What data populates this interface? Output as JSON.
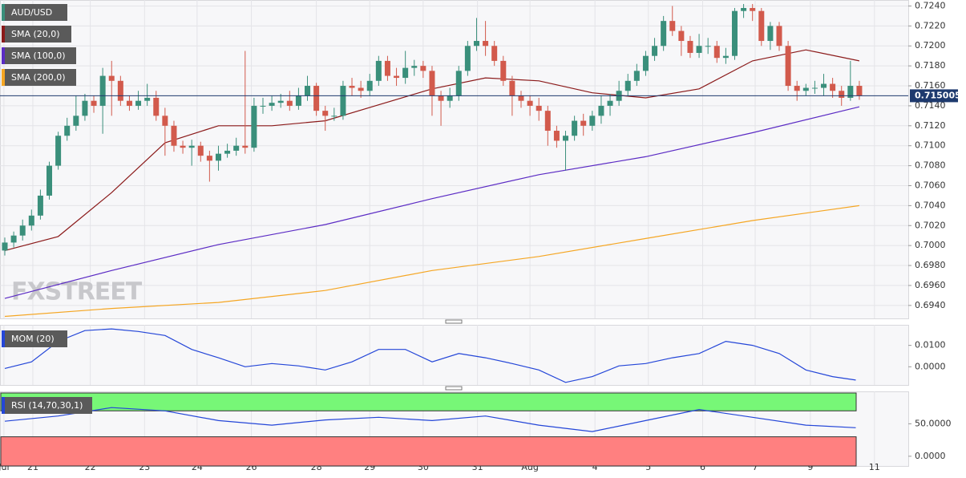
{
  "chart_data": [
    {
      "type": "candlestick",
      "title": "AUD/USD",
      "watermark": "FXSTREET",
      "up_color": "#3a8f7b",
      "down_color": "#d25a4c",
      "grid": true,
      "xlim": [
        -0.54,
        101.5
      ],
      "xticks": [
        {
          "value": -0.1,
          "label": "Jul"
        },
        {
          "value": 3.15,
          "label": "21"
        },
        {
          "value": 9.6,
          "label": "22"
        },
        {
          "value": 15.7,
          "label": "23"
        },
        {
          "value": 21.6,
          "label": "24"
        },
        {
          "value": 27.7,
          "label": "26"
        },
        {
          "value": 35,
          "label": "28"
        },
        {
          "value": 41,
          "label": "29"
        },
        {
          "value": 47,
          "label": "30"
        },
        {
          "value": 53.1,
          "label": "31"
        },
        {
          "value": 59,
          "label": "Aug"
        },
        {
          "value": 66.3,
          "label": "4"
        },
        {
          "value": 72.3,
          "label": "5"
        },
        {
          "value": 78.4,
          "label": "6"
        },
        {
          "value": 84.3,
          "label": "7"
        },
        {
          "value": 90.5,
          "label": "9"
        },
        {
          "value": 97.7,
          "label": "11"
        }
      ],
      "ylim": [
        0.6927,
        0.7246
      ],
      "yticks": [
        {
          "value": 0.724,
          "label": "0.7240"
        },
        {
          "value": 0.722,
          "label": "0.7220"
        },
        {
          "value": 0.72,
          "label": "0.7200"
        },
        {
          "value": 0.718,
          "label": "0.7180"
        },
        {
          "value": 0.716,
          "label": "0.7160"
        },
        {
          "value": 0.714,
          "label": "0.7140"
        },
        {
          "value": 0.712,
          "label": "0.7120"
        },
        {
          "value": 0.71,
          "label": "0.7100"
        },
        {
          "value": 0.708,
          "label": "0.7080"
        },
        {
          "value": 0.706,
          "label": "0.7060"
        },
        {
          "value": 0.704,
          "label": "0.7040"
        },
        {
          "value": 0.702,
          "label": "0.7020"
        },
        {
          "value": 0.7,
          "label": "0.7000"
        },
        {
          "value": 0.698,
          "label": "0.6980"
        },
        {
          "value": 0.696,
          "label": "0.6960"
        },
        {
          "value": 0.694,
          "label": "0.6940"
        }
      ],
      "last": 0.715005,
      "last_color": "#1e3a6e",
      "candles": [
        [
          0.6995,
          0.7008,
          0.699,
          0.7003
        ],
        [
          0.7003,
          0.7014,
          0.6998,
          0.701
        ],
        [
          0.701,
          0.7026,
          0.7005,
          0.702
        ],
        [
          0.702,
          0.7036,
          0.7015,
          0.703
        ],
        [
          0.703,
          0.7056,
          0.7026,
          0.705
        ],
        [
          0.705,
          0.7084,
          0.7046,
          0.708
        ],
        [
          0.708,
          0.7114,
          0.7076,
          0.711
        ],
        [
          0.711,
          0.7128,
          0.7105,
          0.712
        ],
        [
          0.712,
          0.715,
          0.7115,
          0.713
        ],
        [
          0.713,
          0.7152,
          0.7125,
          0.7145
        ],
        [
          0.7145,
          0.715,
          0.7133,
          0.714
        ],
        [
          0.714,
          0.7178,
          0.7112,
          0.717
        ],
        [
          0.717,
          0.7185,
          0.713,
          0.7165
        ],
        [
          0.7165,
          0.717,
          0.714,
          0.7145
        ],
        [
          0.7145,
          0.715,
          0.7135,
          0.714
        ],
        [
          0.714,
          0.7155,
          0.7136,
          0.7145
        ],
        [
          0.7145,
          0.7162,
          0.714,
          0.7148
        ],
        [
          0.7148,
          0.7155,
          0.7125,
          0.713
        ],
        [
          0.713,
          0.7138,
          0.709,
          0.712
        ],
        [
          0.712,
          0.7125,
          0.7094,
          0.71
        ],
        [
          0.71,
          0.7105,
          0.7092,
          0.7098
        ],
        [
          0.7098,
          0.7106,
          0.708,
          0.71
        ],
        [
          0.71,
          0.7104,
          0.7084,
          0.709
        ],
        [
          0.709,
          0.7095,
          0.7064,
          0.7085
        ],
        [
          0.7085,
          0.71,
          0.7075,
          0.7092
        ],
        [
          0.7092,
          0.7102,
          0.7088,
          0.7095
        ],
        [
          0.7095,
          0.7108,
          0.709,
          0.71
        ],
        [
          0.71,
          0.7195,
          0.7092,
          0.7098
        ],
        [
          0.7098,
          0.7148,
          0.7094,
          0.714
        ],
        [
          0.714,
          0.7148,
          0.7132,
          0.714
        ],
        [
          0.714,
          0.715,
          0.7135,
          0.7143
        ],
        [
          0.7143,
          0.7152,
          0.7138,
          0.7145
        ],
        [
          0.7145,
          0.7155,
          0.7135,
          0.714
        ],
        [
          0.714,
          0.7158,
          0.7136,
          0.715
        ],
        [
          0.715,
          0.717,
          0.7145,
          0.716
        ],
        [
          0.716,
          0.7163,
          0.713,
          0.7135
        ],
        [
          0.7135,
          0.714,
          0.7115,
          0.713
        ],
        [
          0.713,
          0.7138,
          0.7125,
          0.713
        ],
        [
          0.713,
          0.7165,
          0.7126,
          0.716
        ],
        [
          0.716,
          0.7168,
          0.715,
          0.7158
        ],
        [
          0.7158,
          0.7165,
          0.7148,
          0.7155
        ],
        [
          0.7155,
          0.7172,
          0.715,
          0.7165
        ],
        [
          0.7165,
          0.719,
          0.716,
          0.7185
        ],
        [
          0.7185,
          0.719,
          0.7165,
          0.717
        ],
        [
          0.717,
          0.7178,
          0.716,
          0.7168
        ],
        [
          0.7168,
          0.7195,
          0.7162,
          0.7178
        ],
        [
          0.7178,
          0.7186,
          0.717,
          0.718
        ],
        [
          0.718,
          0.7185,
          0.7168,
          0.7175
        ],
        [
          0.7175,
          0.718,
          0.713,
          0.715
        ],
        [
          0.715,
          0.7155,
          0.712,
          0.7145
        ],
        [
          0.7145,
          0.7158,
          0.7138,
          0.715
        ],
        [
          0.715,
          0.718,
          0.7145,
          0.7175
        ],
        [
          0.7175,
          0.7205,
          0.717,
          0.72
        ],
        [
          0.72,
          0.7228,
          0.7195,
          0.7205
        ],
        [
          0.7205,
          0.7225,
          0.719,
          0.72
        ],
        [
          0.72,
          0.7205,
          0.718,
          0.7185
        ],
        [
          0.7185,
          0.719,
          0.716,
          0.7165
        ],
        [
          0.7165,
          0.717,
          0.713,
          0.715
        ],
        [
          0.715,
          0.7155,
          0.7138,
          0.7145
        ],
        [
          0.7145,
          0.715,
          0.713,
          0.714
        ],
        [
          0.714,
          0.7148,
          0.7125,
          0.7135
        ],
        [
          0.7135,
          0.714,
          0.71,
          0.7115
        ],
        [
          0.7115,
          0.712,
          0.7098,
          0.7105
        ],
        [
          0.7105,
          0.7115,
          0.7075,
          0.711
        ],
        [
          0.711,
          0.713,
          0.7105,
          0.7125
        ],
        [
          0.7125,
          0.7132,
          0.711,
          0.712
        ],
        [
          0.712,
          0.7135,
          0.7115,
          0.713
        ],
        [
          0.713,
          0.715,
          0.7122,
          0.714
        ],
        [
          0.714,
          0.7152,
          0.713,
          0.7145
        ],
        [
          0.7145,
          0.7165,
          0.714,
          0.7155
        ],
        [
          0.7155,
          0.7172,
          0.715,
          0.7165
        ],
        [
          0.7165,
          0.7182,
          0.716,
          0.7175
        ],
        [
          0.7175,
          0.7195,
          0.717,
          0.719
        ],
        [
          0.719,
          0.7208,
          0.7185,
          0.72
        ],
        [
          0.72,
          0.723,
          0.7195,
          0.7225
        ],
        [
          0.7225,
          0.724,
          0.721,
          0.7215
        ],
        [
          0.7215,
          0.722,
          0.719,
          0.7205
        ],
        [
          0.7205,
          0.721,
          0.7188,
          0.7193
        ],
        [
          0.7193,
          0.7212,
          0.7188,
          0.72
        ],
        [
          0.72,
          0.7208,
          0.7192,
          0.72
        ],
        [
          0.72,
          0.7205,
          0.7183,
          0.7188
        ],
        [
          0.7188,
          0.7198,
          0.7182,
          0.719
        ],
        [
          0.719,
          0.7238,
          0.7186,
          0.7235
        ],
        [
          0.7235,
          0.7242,
          0.7228,
          0.7238
        ],
        [
          0.7238,
          0.7242,
          0.7225,
          0.7235
        ],
        [
          0.7235,
          0.7238,
          0.72,
          0.7205
        ],
        [
          0.7205,
          0.7224,
          0.7196,
          0.722
        ],
        [
          0.722,
          0.7224,
          0.7195,
          0.72
        ],
        [
          0.72,
          0.7205,
          0.7155,
          0.716
        ],
        [
          0.716,
          0.7165,
          0.7145,
          0.7155
        ],
        [
          0.7155,
          0.7162,
          0.715,
          0.7158
        ],
        [
          0.7158,
          0.7165,
          0.7152,
          0.7158
        ],
        [
          0.7158,
          0.7172,
          0.715,
          0.7162
        ],
        [
          0.7162,
          0.7168,
          0.7148,
          0.7155
        ],
        [
          0.7155,
          0.716,
          0.714,
          0.7148
        ],
        [
          0.7148,
          0.7185,
          0.7145,
          0.716
        ],
        [
          0.716,
          0.7165,
          0.7146,
          0.715
        ]
      ],
      "series": [
        {
          "name": "SMA (20,0)",
          "color": "#8b1a1a",
          "x": [
            0,
            6,
            12,
            18,
            24,
            30,
            36,
            42,
            48,
            54,
            60,
            66,
            72,
            78,
            84,
            90,
            96
          ],
          "values": [
            0.6995,
            0.7009,
            0.7053,
            0.7103,
            0.712,
            0.712,
            0.7125,
            0.7141,
            0.7157,
            0.7168,
            0.7165,
            0.7153,
            0.7148,
            0.7157,
            0.7185,
            0.7196,
            0.7185
          ]
        },
        {
          "name": "SMA (100,0)",
          "color": "#5b2bc4",
          "x": [
            0,
            12,
            24,
            36,
            48,
            60,
            72,
            84,
            96
          ],
          "values": [
            0.6947,
            0.6975,
            0.7001,
            0.7021,
            0.7047,
            0.7071,
            0.7089,
            0.7113,
            0.7139
          ]
        },
        {
          "name": "SMA (200,0)",
          "color": "#f5a623",
          "x": [
            0,
            12,
            24,
            36,
            48,
            60,
            72,
            84,
            96
          ],
          "values": [
            0.6929,
            0.6937,
            0.6943,
            0.6955,
            0.6975,
            0.6989,
            0.7007,
            0.7025,
            0.704
          ]
        }
      ]
    },
    {
      "type": "line",
      "title": "MOM (20)",
      "color": "#2446d8",
      "ylim": [
        -0.0085,
        0.0196
      ],
      "yticks": [
        {
          "value": 0.01,
          "label": "0.0100"
        },
        {
          "value": 0,
          "label": "0.0000"
        }
      ],
      "x": [
        0,
        3,
        6,
        9,
        12,
        15,
        18,
        21,
        24,
        27,
        30,
        33,
        36,
        39,
        42,
        45,
        48,
        51,
        54,
        57,
        60,
        63,
        66,
        69,
        72,
        75,
        78,
        81,
        84,
        87,
        90,
        93,
        95.6
      ],
      "values": [
        -0.0008,
        0.0023,
        0.0119,
        0.0169,
        0.0177,
        0.0165,
        0.0146,
        0.0081,
        0.0042,
        0,
        0.0015,
        0.0004,
        -0.0015,
        0.0023,
        0.0081,
        0.0081,
        0.0023,
        0.0062,
        0.0042,
        0.0015,
        -0.0015,
        -0.0073,
        -0.0046,
        0.0004,
        0.0015,
        0.0042,
        0.0062,
        0.0119,
        0.01,
        0.0062,
        -0.0015,
        -0.0046,
        -0.0062
      ]
    },
    {
      "type": "line",
      "title": "RSI (14,70,30,1)",
      "color": "#2446d8",
      "ylim": [
        -15,
        100
      ],
      "yticks": [
        {
          "value": 50,
          "label": "50.0000"
        },
        {
          "value": 0,
          "label": "0.0000"
        }
      ],
      "overbought": 70,
      "oversold": 30,
      "overbought_color": "#77f777",
      "oversold_color": "#ff8080",
      "x": [
        0,
        6,
        12,
        18,
        24,
        30,
        36,
        42,
        48,
        54,
        60,
        66,
        72,
        78,
        84,
        90,
        95.6
      ],
      "values": [
        54,
        62,
        75,
        70,
        55,
        48,
        56,
        60,
        55,
        62,
        48,
        38,
        55,
        72,
        60,
        48,
        44
      ]
    }
  ]
}
